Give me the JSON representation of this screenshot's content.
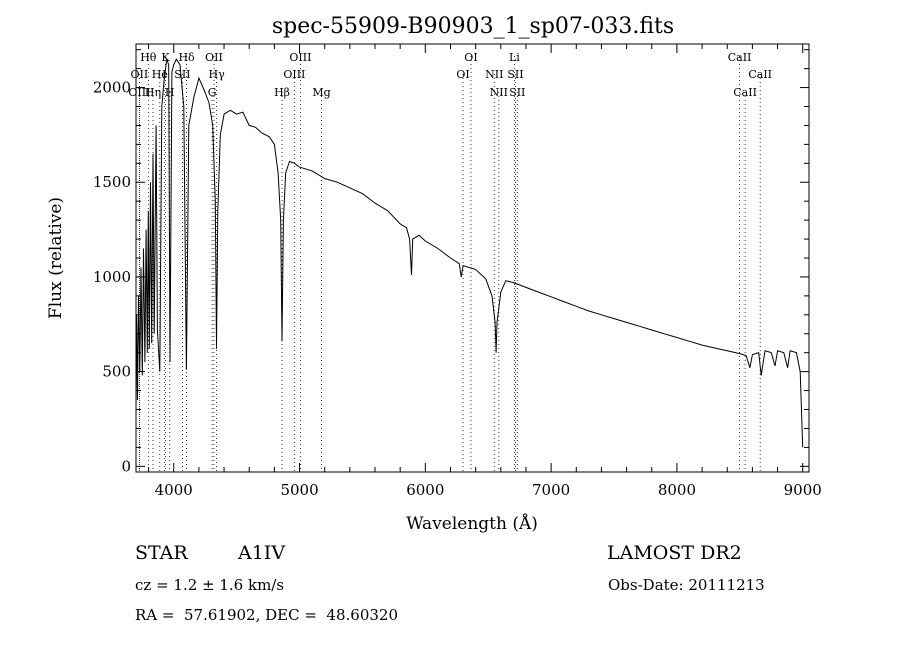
{
  "chart_data": {
    "type": "line",
    "title": "spec-55909-B90903_1_sp07-033.fits",
    "xlabel": "Wavelength (Å)",
    "ylabel": "Flux (relative)",
    "xlim": [
      3700,
      9050
    ],
    "ylim": [
      -30,
      2230
    ],
    "x_ticks": [
      4000,
      5000,
      6000,
      7000,
      8000,
      9000
    ],
    "y_ticks": [
      0,
      500,
      1000,
      1500,
      2000
    ],
    "grid": false,
    "legend": "none",
    "series": [
      {
        "points": [
          [
            3700,
            300
          ],
          [
            3705,
            800
          ],
          [
            3712,
            350
          ],
          [
            3720,
            900
          ],
          [
            3730,
            500
          ],
          [
            3740,
            1050
          ],
          [
            3750,
            480
          ],
          [
            3760,
            1150
          ],
          [
            3771,
            550
          ],
          [
            3780,
            1250
          ],
          [
            3790,
            600
          ],
          [
            3798,
            1350
          ],
          [
            3806,
            620
          ],
          [
            3815,
            1500
          ],
          [
            3825,
            650
          ],
          [
            3835,
            1650
          ],
          [
            3845,
            700
          ],
          [
            3860,
            1800
          ],
          [
            3870,
            720
          ],
          [
            3889,
            500
          ],
          [
            3905,
            1900
          ],
          [
            3925,
            2050
          ],
          [
            3945,
            2150
          ],
          [
            3960,
            2120
          ],
          [
            3970,
            550
          ],
          [
            3985,
            2080
          ],
          [
            4000,
            2120
          ],
          [
            4020,
            2150
          ],
          [
            4050,
            2120
          ],
          [
            4080,
            1900
          ],
          [
            4101,
            510
          ],
          [
            4120,
            1800
          ],
          [
            4160,
            1950
          ],
          [
            4200,
            2050
          ],
          [
            4240,
            1990
          ],
          [
            4280,
            1920
          ],
          [
            4310,
            1800
          ],
          [
            4330,
            1400
          ],
          [
            4340,
            620
          ],
          [
            4350,
            1350
          ],
          [
            4370,
            1750
          ],
          [
            4400,
            1860
          ],
          [
            4450,
            1880
          ],
          [
            4500,
            1860
          ],
          [
            4550,
            1870
          ],
          [
            4600,
            1800
          ],
          [
            4650,
            1790
          ],
          [
            4700,
            1760
          ],
          [
            4760,
            1740
          ],
          [
            4800,
            1700
          ],
          [
            4830,
            1550
          ],
          [
            4850,
            1300
          ],
          [
            4861,
            660
          ],
          [
            4872,
            1300
          ],
          [
            4890,
            1550
          ],
          [
            4920,
            1610
          ],
          [
            4960,
            1600
          ],
          [
            5000,
            1580
          ],
          [
            5100,
            1560
          ],
          [
            5200,
            1520
          ],
          [
            5300,
            1500
          ],
          [
            5400,
            1470
          ],
          [
            5500,
            1440
          ],
          [
            5600,
            1390
          ],
          [
            5700,
            1350
          ],
          [
            5800,
            1280
          ],
          [
            5850,
            1260
          ],
          [
            5875,
            1200
          ],
          [
            5890,
            1010
          ],
          [
            5900,
            1200
          ],
          [
            5950,
            1220
          ],
          [
            6000,
            1190
          ],
          [
            6100,
            1150
          ],
          [
            6200,
            1100
          ],
          [
            6270,
            1070
          ],
          [
            6285,
            1000
          ],
          [
            6300,
            1060
          ],
          [
            6400,
            1040
          ],
          [
            6480,
            990
          ],
          [
            6530,
            900
          ],
          [
            6555,
            760
          ],
          [
            6563,
            600
          ],
          [
            6570,
            760
          ],
          [
            6600,
            920
          ],
          [
            6640,
            980
          ],
          [
            6700,
            970
          ],
          [
            6800,
            945
          ],
          [
            6900,
            920
          ],
          [
            7000,
            895
          ],
          [
            7100,
            870
          ],
          [
            7200,
            845
          ],
          [
            7300,
            820
          ],
          [
            7400,
            800
          ],
          [
            7500,
            780
          ],
          [
            7600,
            760
          ],
          [
            7700,
            740
          ],
          [
            7800,
            720
          ],
          [
            7900,
            700
          ],
          [
            8000,
            680
          ],
          [
            8100,
            660
          ],
          [
            8200,
            640
          ],
          [
            8300,
            625
          ],
          [
            8400,
            610
          ],
          [
            8500,
            595
          ],
          [
            8550,
            585
          ],
          [
            8580,
            520
          ],
          [
            8600,
            590
          ],
          [
            8650,
            600
          ],
          [
            8670,
            480
          ],
          [
            8700,
            610
          ],
          [
            8750,
            600
          ],
          [
            8780,
            530
          ],
          [
            8800,
            610
          ],
          [
            8850,
            600
          ],
          [
            8880,
            520
          ],
          [
            8900,
            610
          ],
          [
            8950,
            600
          ],
          [
            8980,
            500
          ],
          [
            9000,
            100
          ]
        ]
      }
    ],
    "line_markers": [
      {
        "label": "Hθ",
        "x": 3798,
        "row": 0
      },
      {
        "label": "K",
        "x": 3934,
        "row": 0
      },
      {
        "label": "Hδ",
        "x": 4102,
        "row": 0
      },
      {
        "label": "OII",
        "x": 4320,
        "row": 0
      },
      {
        "label": "OIII",
        "x": 5007,
        "row": 0
      },
      {
        "label": "OI",
        "x": 6363,
        "row": 0
      },
      {
        "label": "Li",
        "x": 6708,
        "row": 0
      },
      {
        "label": "CaII",
        "x": 8498,
        "row": 0
      },
      {
        "label": "OII",
        "x": 3727,
        "row": 1
      },
      {
        "label": "He",
        "x": 3889,
        "row": 1
      },
      {
        "label": "I",
        "x": 3925,
        "row": 1
      },
      {
        "label": "SII",
        "x": 4069,
        "row": 1
      },
      {
        "label": "Hγ",
        "x": 4341,
        "row": 1
      },
      {
        "label": "OIII",
        "x": 4959,
        "row": 1
      },
      {
        "label": "OI",
        "x": 6300,
        "row": 1
      },
      {
        "label": "NII",
        "x": 6548,
        "row": 1
      },
      {
        "label": "SII",
        "x": 6717,
        "row": 1
      },
      {
        "label": "CaII",
        "x": 8662,
        "row": 1
      },
      {
        "label": "OIII",
        "x": 3727,
        "row": 2
      },
      {
        "label": "Hη",
        "x": 3835,
        "row": 2
      },
      {
        "label": "H",
        "x": 3968,
        "row": 2
      },
      {
        "label": "G",
        "x": 4305,
        "row": 2
      },
      {
        "label": "Hβ",
        "x": 4861,
        "row": 2
      },
      {
        "label": "Mg",
        "x": 5175,
        "row": 2
      },
      {
        "label": "NII",
        "x": 6584,
        "row": 2
      },
      {
        "label": "SII",
        "x": 6731,
        "row": 2
      },
      {
        "label": "CaII",
        "x": 8542,
        "row": 2
      }
    ]
  },
  "info": {
    "object_type": "STAR",
    "subclass": "A1IV",
    "survey": "LAMOST DR2",
    "cz": "cz = 1.2 ± 1.6 km/s",
    "obs_date": "Obs-Date: 20111213",
    "coords": "RA =  57.61902, DEC =  48.60320"
  }
}
